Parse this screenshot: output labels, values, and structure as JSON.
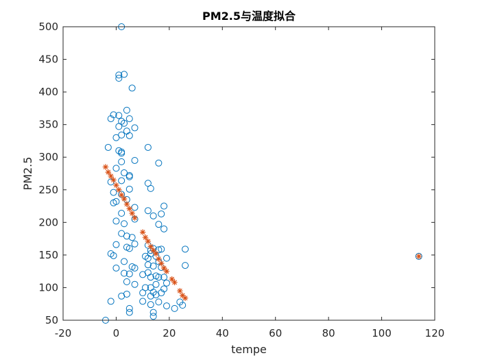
{
  "chart_data": {
    "type": "scatter",
    "title": "PM2.5与温度拟合",
    "xlabel": "tempe",
    "ylabel": "PM2.5",
    "xlim": [
      -20,
      120
    ],
    "ylim": [
      50,
      500
    ],
    "xticks": [
      -20,
      0,
      20,
      40,
      60,
      80,
      100,
      120
    ],
    "yticks": [
      50,
      100,
      150,
      200,
      250,
      300,
      350,
      400,
      450,
      500
    ],
    "grid": false,
    "colors": {
      "observed": "#0072BD",
      "fitted": "#D95319",
      "axis": "#262626"
    },
    "series": [
      {
        "marker": "circle",
        "points": [
          [
            2,
            500
          ],
          [
            3,
            427
          ],
          [
            1,
            426
          ],
          [
            1,
            421
          ],
          [
            6,
            406
          ],
          [
            4,
            372
          ],
          [
            -1,
            365
          ],
          [
            1,
            364
          ],
          [
            -2,
            359
          ],
          [
            5,
            359
          ],
          [
            2,
            355
          ],
          [
            3,
            352
          ],
          [
            1,
            347
          ],
          [
            7,
            345
          ],
          [
            4,
            340
          ],
          [
            2,
            334
          ],
          [
            5,
            333
          ],
          [
            0,
            330
          ],
          [
            -3,
            315
          ],
          [
            12,
            315
          ],
          [
            1,
            310
          ],
          [
            2,
            308
          ],
          [
            2,
            306
          ],
          [
            7,
            295
          ],
          [
            16,
            291
          ],
          [
            2,
            293
          ],
          [
            0,
            283
          ],
          [
            3,
            276
          ],
          [
            5,
            272
          ],
          [
            5,
            270
          ],
          [
            -2,
            262
          ],
          [
            2,
            264
          ],
          [
            12,
            260
          ],
          [
            13,
            252
          ],
          [
            5,
            251
          ],
          [
            -1,
            246
          ],
          [
            2,
            243
          ],
          [
            4,
            235
          ],
          [
            0,
            232
          ],
          [
            -1,
            230
          ],
          [
            7,
            223
          ],
          [
            18,
            225
          ],
          [
            12,
            218
          ],
          [
            17,
            213
          ],
          [
            2,
            214
          ],
          [
            14,
            210
          ],
          [
            16,
            197
          ],
          [
            3,
            198
          ],
          [
            0,
            202
          ],
          [
            7,
            205
          ],
          [
            18,
            190
          ],
          [
            2,
            183
          ],
          [
            4,
            179
          ],
          [
            6,
            177
          ],
          [
            7,
            167
          ],
          [
            0,
            166
          ],
          [
            12,
            165
          ],
          [
            4,
            162
          ],
          [
            5,
            160
          ],
          [
            14,
            160
          ],
          [
            16,
            158
          ],
          [
            17,
            159
          ],
          [
            13,
            157
          ],
          [
            26,
            159
          ],
          [
            13,
            152
          ],
          [
            -2,
            152
          ],
          [
            -1,
            149
          ],
          [
            11,
            148
          ],
          [
            15,
            148
          ],
          [
            12,
            145
          ],
          [
            19,
            145
          ],
          [
            3,
            140
          ],
          [
            16,
            140
          ],
          [
            6,
            132
          ],
          [
            12,
            135
          ],
          [
            14,
            133
          ],
          [
            17,
            131
          ],
          [
            26,
            134
          ],
          [
            0,
            130
          ],
          [
            7,
            130
          ],
          [
            3,
            122
          ],
          [
            5,
            121
          ],
          [
            12,
            123
          ],
          [
            10,
            120
          ],
          [
            15,
            118
          ],
          [
            16,
            116
          ],
          [
            13,
            116
          ],
          [
            18,
            116
          ],
          [
            4,
            109
          ],
          [
            7,
            105
          ],
          [
            15,
            105
          ],
          [
            19,
            107
          ],
          [
            11,
            100
          ],
          [
            13,
            100
          ],
          [
            18,
            98
          ],
          [
            14,
            93
          ],
          [
            10,
            92
          ],
          [
            17,
            92
          ],
          [
            15,
            89
          ],
          [
            4,
            90
          ],
          [
            2,
            87
          ],
          [
            13,
            87
          ],
          [
            -2,
            79
          ],
          [
            10,
            79
          ],
          [
            16,
            78
          ],
          [
            24,
            78
          ],
          [
            13,
            74
          ],
          [
            19,
            72
          ],
          [
            25,
            73
          ],
          [
            5,
            68
          ],
          [
            22,
            68
          ],
          [
            5,
            62
          ],
          [
            14,
            62
          ],
          [
            14,
            56
          ],
          [
            -4,
            50
          ],
          [
            114,
            148
          ]
        ]
      },
      {
        "marker": "asterisk",
        "points": [
          [
            -4,
            285
          ],
          [
            -3,
            277
          ],
          [
            -2,
            271
          ],
          [
            -1,
            265
          ],
          [
            0,
            257
          ],
          [
            1,
            250
          ],
          [
            2,
            242
          ],
          [
            3,
            236
          ],
          [
            4,
            228
          ],
          [
            5,
            221
          ],
          [
            6,
            214
          ],
          [
            7,
            207
          ],
          [
            10,
            185
          ],
          [
            11,
            177
          ],
          [
            12,
            171
          ],
          [
            13,
            163
          ],
          [
            14,
            157
          ],
          [
            15,
            152
          ],
          [
            16,
            144
          ],
          [
            17,
            137
          ],
          [
            18,
            130
          ],
          [
            19,
            125
          ],
          [
            21,
            113
          ],
          [
            22,
            108
          ],
          [
            24,
            95
          ],
          [
            25,
            88
          ],
          [
            26,
            84
          ],
          [
            114,
            148
          ]
        ]
      }
    ]
  }
}
